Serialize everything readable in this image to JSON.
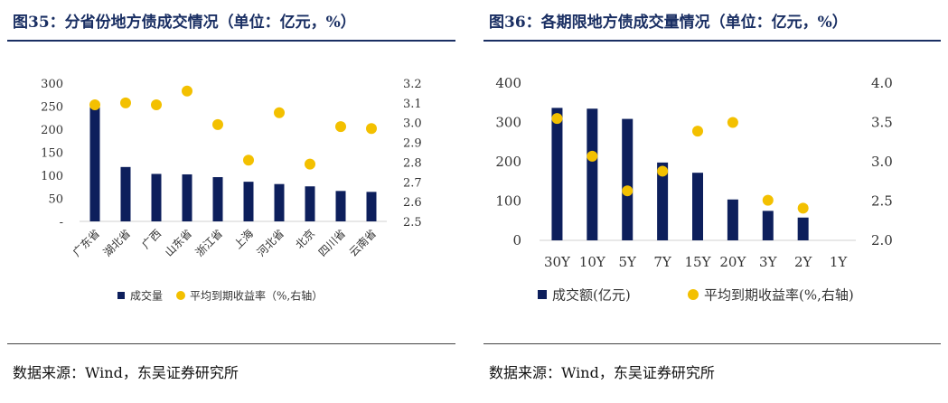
{
  "panels": [
    {
      "title": "图35：分省份地方债成交情况（单位：亿元，%）",
      "source": "数据来源：Wind，东吴证券研究所"
    },
    {
      "title": "图36：各期限地方债成交量情况（单位：亿元，%）",
      "source": "数据来源：Wind，东吴证券研究所"
    }
  ],
  "chart_data": [
    {
      "type": "bar",
      "categories": [
        "广东省",
        "湖北省",
        "广西",
        "山东省",
        "浙江省",
        "上海",
        "河北省",
        "北京",
        "四川省",
        "云南省"
      ],
      "series": [
        {
          "name": "成交量",
          "type": "bar",
          "axis": "left",
          "values": [
            258,
            118,
            103,
            102,
            96,
            86,
            81,
            76,
            66,
            64
          ]
        },
        {
          "name": "平均到期收益率（%,右轴）",
          "type": "scatter",
          "axis": "right",
          "values": [
            3.09,
            3.1,
            3.09,
            3.16,
            2.99,
            2.81,
            3.05,
            2.79,
            2.98,
            2.97
          ]
        }
      ],
      "left_axis": {
        "min": 0,
        "max": 300,
        "ticks": [
          "-",
          "50",
          "100",
          "150",
          "200",
          "250",
          "300"
        ]
      },
      "right_axis": {
        "min": 2.5,
        "max": 3.2,
        "ticks": [
          "2.5",
          "2.6",
          "2.7",
          "2.8",
          "2.9",
          "3.0",
          "3.1",
          "3.2"
        ]
      },
      "legend_position": "bottom",
      "colors": {
        "bar": "#0d1f5c",
        "dot": "#f3c000"
      }
    },
    {
      "type": "bar",
      "categories": [
        "30Y",
        "10Y",
        "5Y",
        "7Y",
        "15Y",
        "20Y",
        "3Y",
        "2Y",
        "1Y"
      ],
      "series": [
        {
          "name": "成交额(亿元)",
          "type": "bar",
          "axis": "left",
          "values": [
            337,
            335,
            309,
            198,
            172,
            104,
            75,
            58,
            null
          ]
        },
        {
          "name": "平均到期收益率(%,右轴)",
          "type": "scatter",
          "axis": "right",
          "values": [
            3.55,
            3.07,
            2.63,
            2.88,
            3.39,
            3.5,
            2.51,
            2.41,
            null
          ]
        }
      ],
      "left_axis": {
        "min": 0,
        "max": 400,
        "ticks": [
          "0",
          "100",
          "200",
          "300",
          "400"
        ]
      },
      "right_axis": {
        "min": 2.0,
        "max": 4.0,
        "ticks": [
          "2.0",
          "2.5",
          "3.0",
          "3.5",
          "4.0"
        ]
      },
      "legend_position": "bottom",
      "colors": {
        "bar": "#0d1f5c",
        "dot": "#f3c000"
      }
    }
  ]
}
